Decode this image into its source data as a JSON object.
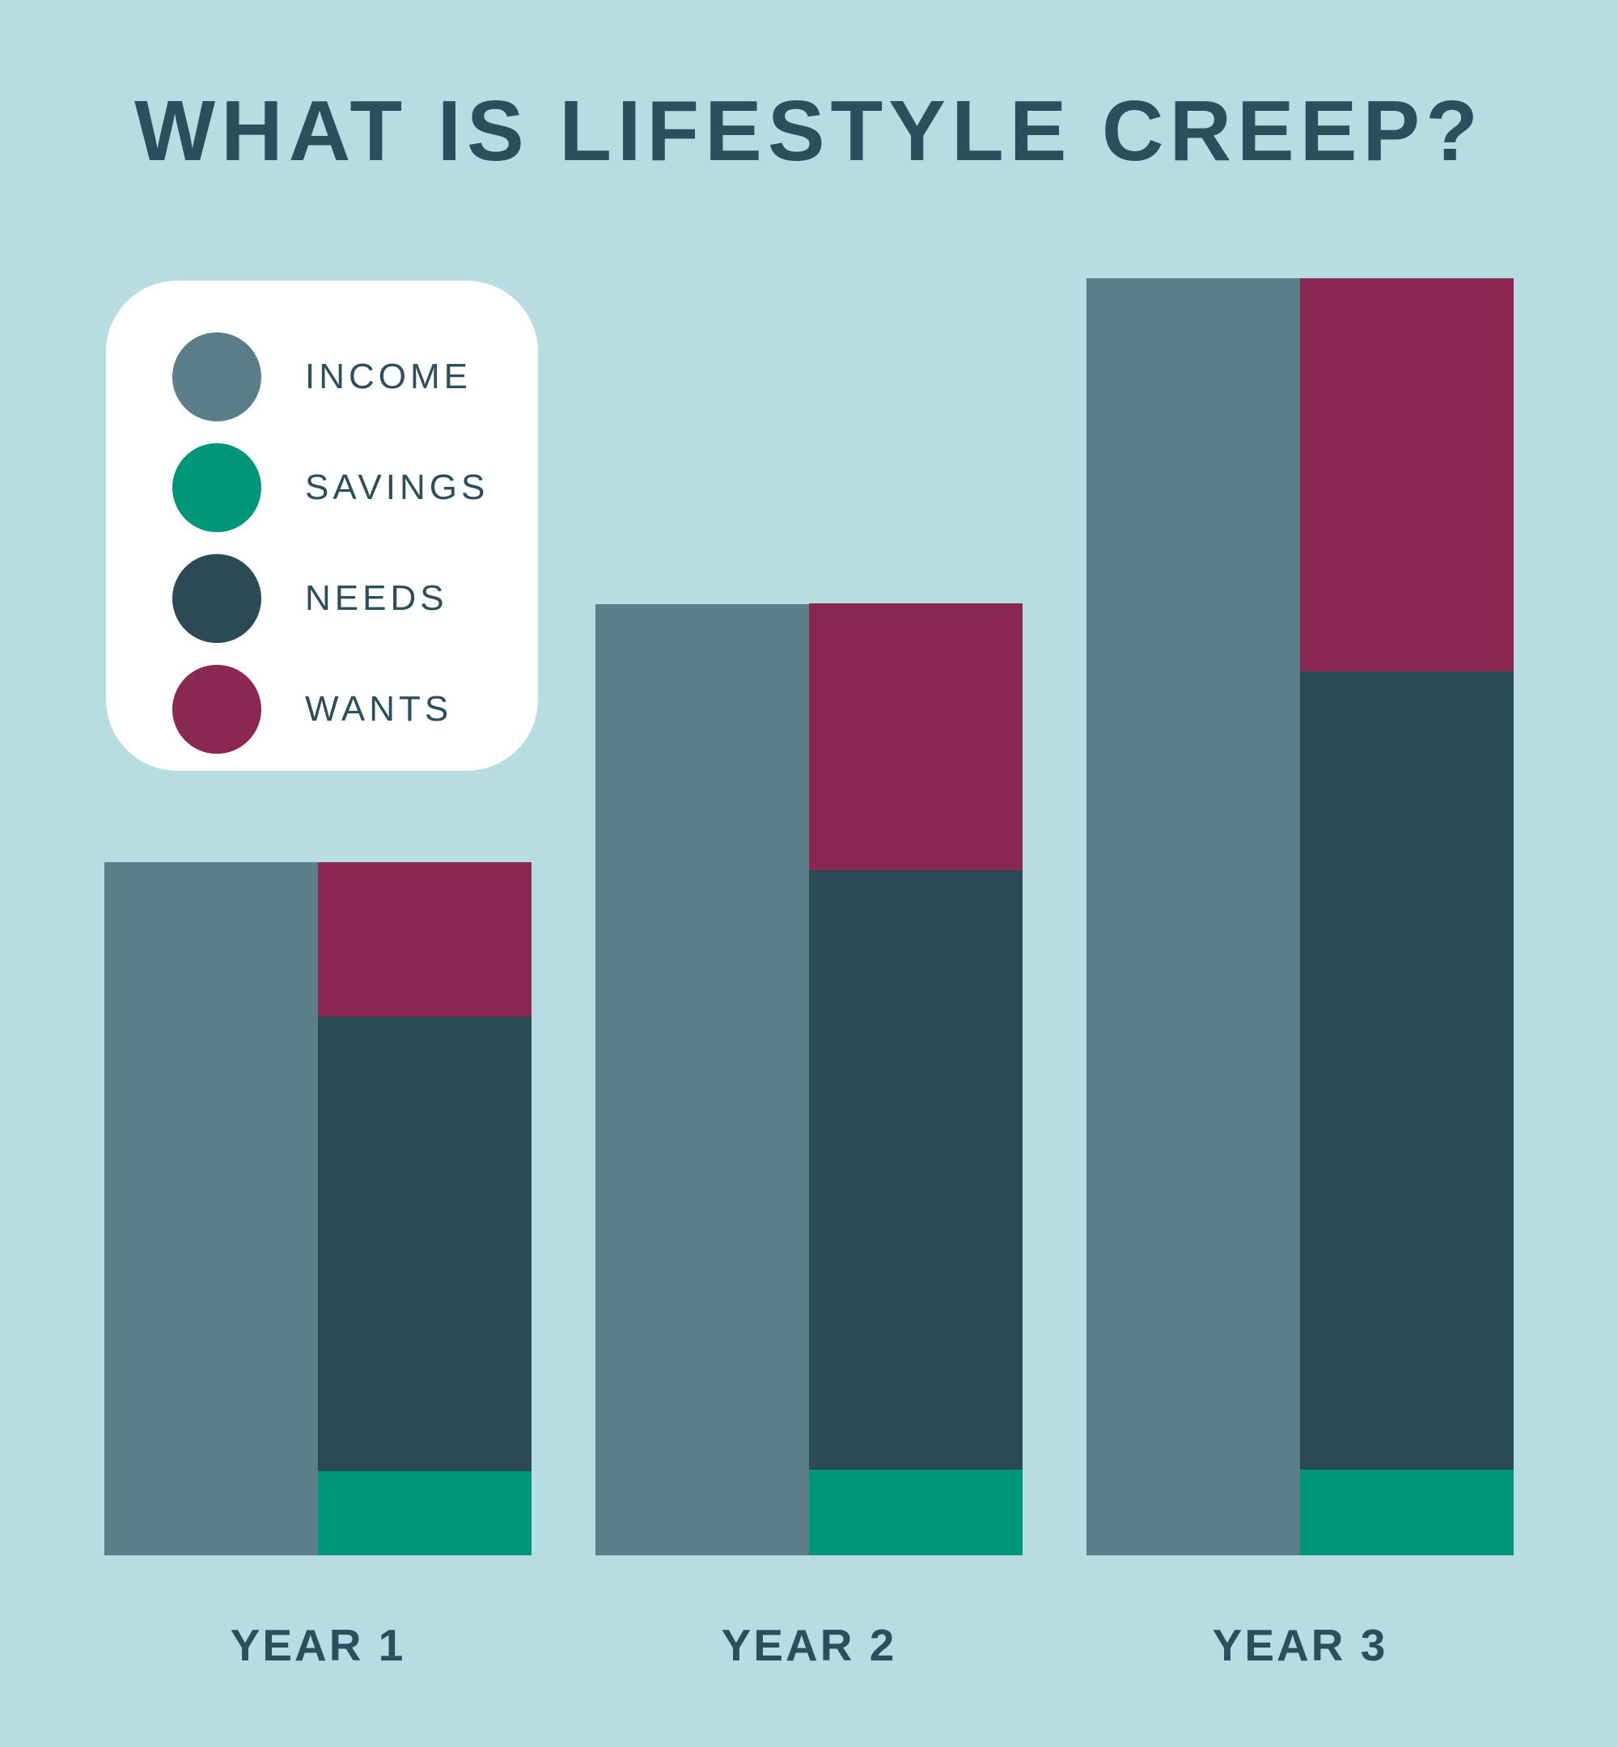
{
  "title": "WHAT IS LIFESTYLE CREEP?",
  "legend": {
    "items": [
      {
        "id": "income",
        "label": "INCOME",
        "color": "#5b7e8a"
      },
      {
        "id": "savings",
        "label": "SAVINGS",
        "color": "#00967a"
      },
      {
        "id": "needs",
        "label": "NEEDS",
        "color": "#2a4a56"
      },
      {
        "id": "wants",
        "label": "WANTS",
        "color": "#8a2852"
      }
    ]
  },
  "chart_data": {
    "type": "bar",
    "subtype": "income bar beside stacked spending bar, per year",
    "title": "WHAT IS LIFESTYLE CREEP?",
    "categories": [
      "YEAR 1",
      "YEAR 2",
      "YEAR 3"
    ],
    "units": "relative height, Year 3 income = 100",
    "ylim": [
      0,
      100
    ],
    "series": [
      {
        "name": "INCOME",
        "role": "solo-bar",
        "color": "#5b7e8a",
        "values": [
          54.3,
          74.5,
          100
        ]
      },
      {
        "name": "SAVINGS",
        "role": "stack-bottom",
        "color": "#00967a",
        "values": [
          6.6,
          6.7,
          6.7
        ]
      },
      {
        "name": "NEEDS",
        "role": "stack-middle",
        "color": "#2a4a56",
        "values": [
          35.6,
          46.9,
          62.5
        ]
      },
      {
        "name": "WANTS",
        "role": "stack-top",
        "color": "#8a2852",
        "values": [
          12.1,
          20.9,
          30.8
        ]
      }
    ],
    "stack_order_bottom_to_top": [
      "SAVINGS",
      "NEEDS",
      "WANTS"
    ],
    "legend_position": "top-left",
    "grid": false,
    "axes_shown": false,
    "background_color": "#b7dde2",
    "text_color": "#2d4e5c",
    "legend_card_color": "#ffffff"
  }
}
